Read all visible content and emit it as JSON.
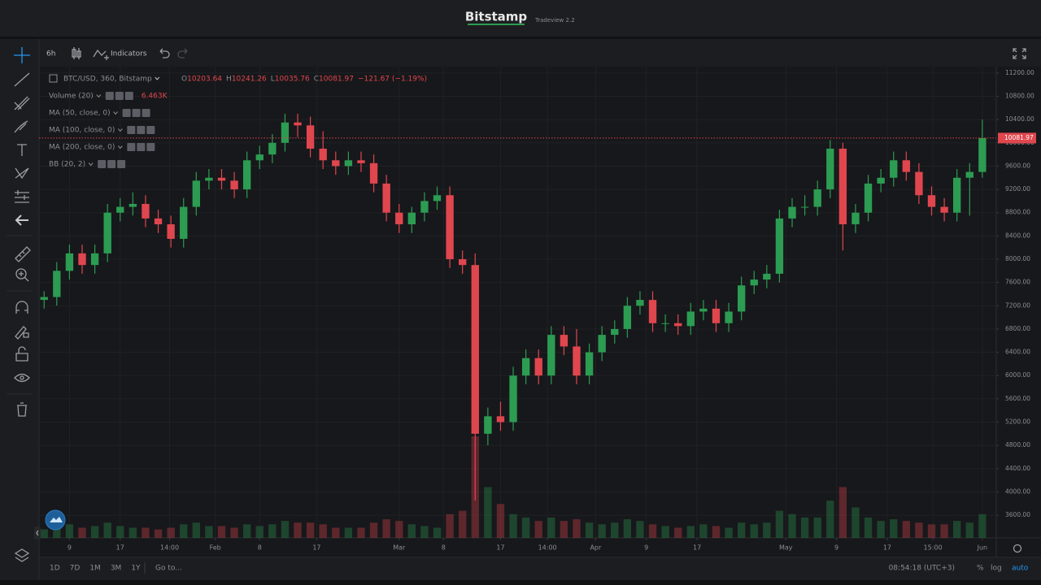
{
  "header": {
    "title": "Bitstamp",
    "version": "Tradeview 2.2"
  },
  "toolbar": {
    "interval": "6h",
    "indicators": "Indicators"
  },
  "legend": {
    "symbol": "BTC/USD, 360, Bitstamp",
    "ohlc": [
      {
        "key": "O",
        "value": "10203.64"
      },
      {
        "key": "H",
        "value": "10241.26"
      },
      {
        "key": "L",
        "value": "10035.76"
      },
      {
        "key": "C",
        "value": "10081.97"
      }
    ],
    "change": "−121.67 (−1.19%)",
    "indicators": [
      {
        "name": "Volume (20)",
        "value": "6.463K"
      },
      {
        "name": "MA (50, close, 0)"
      },
      {
        "name": "MA (100, close, 0)"
      },
      {
        "name": "MA (200, close, 0)"
      },
      {
        "name": "BB (20, 2)"
      }
    ]
  },
  "chart_data": {
    "type": "candlestick",
    "open": [
      7300,
      7350,
      7800,
      8100,
      7900,
      8100,
      8800,
      8900,
      8950,
      8700,
      8600,
      8350,
      8900,
      9350,
      9400,
      9350,
      9200,
      9700,
      9800,
      10000,
      10350,
      10300,
      9900,
      9700,
      9600,
      9700,
      9650,
      9300,
      8800,
      8600,
      8800,
      9000,
      9100,
      8000,
      7900,
      5000,
      5300,
      5200,
      6000,
      6300,
      6000,
      6700,
      6500,
      6000,
      6400,
      6700,
      6800,
      7200,
      7300,
      6900,
      6900,
      6850,
      7100,
      7150,
      6900,
      7100,
      7550,
      7650,
      7750,
      8700,
      8900,
      8900,
      9200,
      9900,
      8600,
      8800,
      9300,
      9400,
      9700,
      9500,
      9100,
      8900,
      8800,
      9400,
      9500
    ],
    "high": [
      7450,
      7950,
      8250,
      8250,
      8250,
      8950,
      9050,
      9150,
      9100,
      8850,
      8750,
      9050,
      9500,
      9550,
      9550,
      9500,
      9850,
      9950,
      10150,
      10500,
      10500,
      10450,
      10200,
      9850,
      9850,
      9850,
      9800,
      9450,
      8950,
      8900,
      9150,
      9250,
      9250,
      8150,
      8100,
      5450,
      5550,
      6150,
      6450,
      6450,
      6850,
      6850,
      6800,
      6550,
      6850,
      6950,
      7350,
      7450,
      7450,
      7050,
      7050,
      7250,
      7300,
      7300,
      7250,
      7700,
      7800,
      7900,
      8850,
      9050,
      9100,
      9350,
      10050,
      10000,
      8950,
      9450,
      9550,
      9850,
      9850,
      9650,
      9250,
      9050,
      9550,
      9650,
      10400
    ],
    "low": [
      7150,
      7200,
      7650,
      7750,
      7750,
      7950,
      8650,
      8750,
      8550,
      8450,
      8200,
      8200,
      8750,
      9200,
      9200,
      9050,
      9050,
      9550,
      9650,
      9850,
      10100,
      9750,
      9550,
      9450,
      9450,
      9500,
      9150,
      8650,
      8450,
      8450,
      8650,
      8850,
      7850,
      7750,
      3850,
      4800,
      5050,
      5050,
      5850,
      5850,
      5850,
      6350,
      5850,
      5850,
      6250,
      6550,
      6650,
      7050,
      6750,
      6750,
      6700,
      6700,
      6950,
      6750,
      6750,
      6950,
      7400,
      7500,
      7600,
      8550,
      8750,
      8750,
      9050,
      8150,
      8450,
      8650,
      9150,
      9250,
      9350,
      8950,
      8750,
      8650,
      8650,
      8750,
      9400
    ],
    "close": [
      7350,
      7800,
      8100,
      7900,
      8100,
      8800,
      8900,
      8950,
      8700,
      8600,
      8350,
      8900,
      9350,
      9400,
      9350,
      9200,
      9700,
      9800,
      10000,
      10350,
      10300,
      9900,
      9700,
      9600,
      9700,
      9650,
      9300,
      8800,
      8600,
      8800,
      9000,
      9100,
      8000,
      7900,
      5000,
      5300,
      5200,
      6000,
      6300,
      6000,
      6700,
      6500,
      6000,
      6400,
      6700,
      6800,
      7200,
      7300,
      6900,
      6900,
      6850,
      7100,
      7150,
      6900,
      7100,
      7550,
      7650,
      7750,
      8700,
      8900,
      8900,
      9200,
      9900,
      8600,
      8800,
      9300,
      9400,
      9700,
      9500,
      9100,
      8900,
      8800,
      9400,
      9500,
      10082
    ],
    "volume": [
      5,
      6,
      8,
      6,
      7,
      9,
      7,
      6,
      6,
      5,
      6,
      8,
      9,
      7,
      7,
      6,
      8,
      7,
      8,
      10,
      9,
      9,
      8,
      6,
      6,
      6,
      9,
      11,
      10,
      8,
      7,
      6,
      14,
      16,
      60,
      30,
      20,
      14,
      12,
      10,
      12,
      10,
      11,
      9,
      8,
      9,
      11,
      10,
      8,
      7,
      6,
      7,
      8,
      7,
      6,
      9,
      8,
      9,
      16,
      14,
      12,
      12,
      22,
      30,
      18,
      12,
      10,
      11,
      10,
      9,
      8,
      8,
      10,
      9,
      14
    ],
    "up_color": "#2c9c52",
    "down_color": "#e0464e",
    "grid": true,
    "xlim": [
      -0.4,
      75.1
    ],
    "xticks": [
      {
        "value": 2,
        "label": "9"
      },
      {
        "value": 6,
        "label": "17"
      },
      {
        "value": 9.9,
        "label": "14:00"
      },
      {
        "value": 13.5,
        "label": "Feb"
      },
      {
        "value": 17,
        "label": "8"
      },
      {
        "value": 21.5,
        "label": "17"
      },
      {
        "value": 28,
        "label": "Mar"
      },
      {
        "value": 31.5,
        "label": "8"
      },
      {
        "value": 36,
        "label": "17"
      },
      {
        "value": 39.7,
        "label": "14:00"
      },
      {
        "value": 43.5,
        "label": "Apr"
      },
      {
        "value": 47.5,
        "label": "9"
      },
      {
        "value": 51.5,
        "label": "17"
      },
      {
        "value": 58.5,
        "label": "May"
      },
      {
        "value": 62.5,
        "label": "9"
      },
      {
        "value": 66.5,
        "label": "17"
      },
      {
        "value": 70.1,
        "label": "15:00"
      },
      {
        "value": 74,
        "label": "Jun"
      }
    ],
    "ylim": [
      3210,
      11310
    ],
    "yticks": [
      {
        "value": 3600,
        "label": "3600.00"
      },
      {
        "value": 4000,
        "label": "4000.00"
      },
      {
        "value": 4400,
        "label": "4400.00"
      },
      {
        "value": 4800,
        "label": "4800.00"
      },
      {
        "value": 5200,
        "label": "5200.00"
      },
      {
        "value": 5600,
        "label": "5600.00"
      },
      {
        "value": 6000,
        "label": "6000.00"
      },
      {
        "value": 6400,
        "label": "6400.00"
      },
      {
        "value": 6800,
        "label": "6800.00"
      },
      {
        "value": 7200,
        "label": "7200.00"
      },
      {
        "value": 7600,
        "label": "7600.00"
      },
      {
        "value": 8000,
        "label": "8000.00"
      },
      {
        "value": 8400,
        "label": "8400.00"
      },
      {
        "value": 8800,
        "label": "8800.00"
      },
      {
        "value": 9200,
        "label": "9200.00"
      },
      {
        "value": 9600,
        "label": "9600.00"
      },
      {
        "value": 10000,
        "label": "10000.00"
      },
      {
        "value": 10400,
        "label": "10400.00"
      },
      {
        "value": 10800,
        "label": "10800.00"
      },
      {
        "value": 11200,
        "label": "11200.00"
      }
    ],
    "last_price": {
      "value": 10081.97,
      "label": "10081.97"
    }
  },
  "footer": {
    "ranges": [
      "1D",
      "7D",
      "1M",
      "3M",
      "1Y"
    ],
    "goto": "Go to...",
    "time": "08:54:18 (UTC+3)",
    "options": [
      "%",
      "log",
      "auto"
    ]
  }
}
